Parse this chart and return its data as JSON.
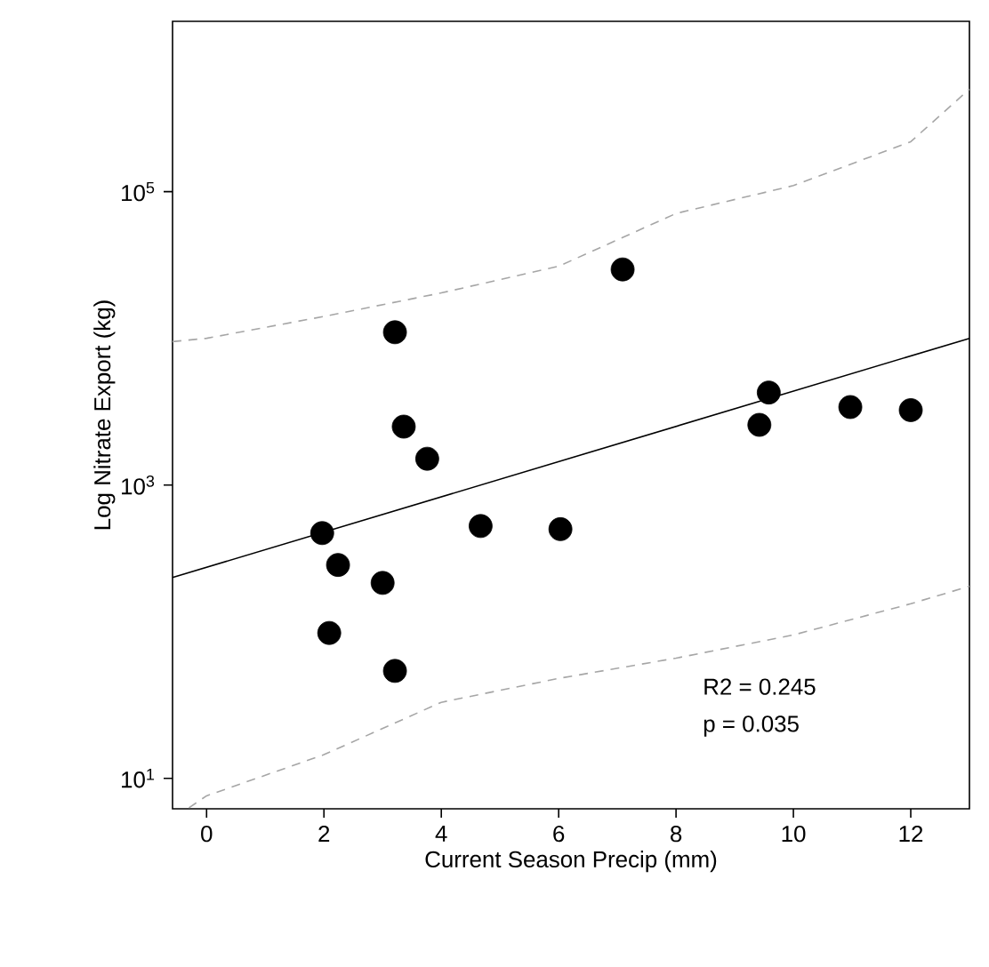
{
  "chart_data": {
    "type": "scatter",
    "xlabel": "Current Season Precip (mm)",
    "ylabel": "Log Nitrate Export (kg)",
    "log": "y",
    "xlim": [
      -0.58,
      13.0
    ],
    "ylim": [
      6.2,
      1450000
    ],
    "xticks": [
      0,
      2,
      4,
      6,
      8,
      10,
      12
    ],
    "yticks": [
      {
        "value": 10,
        "label": "10$^{1}$"
      },
      {
        "value": 1000,
        "label": "10$^{3}$"
      },
      {
        "value": 100000,
        "label": "10$^{5}$"
      }
    ],
    "series": [
      {
        "marker": "circle",
        "color": "#000000",
        "x": [
          1.97,
          2.24,
          2.09,
          3.0,
          3.21,
          3.21,
          3.36,
          3.76,
          4.67,
          6.03,
          7.09,
          9.42,
          9.58,
          10.97,
          12.0
        ],
        "values": [
          470,
          285,
          98,
          215,
          54,
          11000,
          2500,
          1510,
          525,
          500,
          29500,
          2570,
          4270,
          3400,
          3240
        ]
      },
      {
        "type": "line",
        "color": "#000000",
        "line_style": "solid",
        "marker": "none",
        "x": [
          -0.58,
          13.0
        ],
        "values": [
          234,
          10000
        ]
      },
      {
        "type": "line",
        "color": "#a6a6a6",
        "line_style": "dashed",
        "marker": "none",
        "x": [
          -0.3,
          0,
          2,
          4,
          6,
          8,
          10,
          12,
          13
        ],
        "values": [
          6.3,
          7.6,
          14.5,
          33,
          48,
          66,
          95,
          155,
          204
        ]
      },
      {
        "type": "line",
        "color": "#a6a6a6",
        "line_style": "dashed",
        "marker": "none",
        "x": [
          -0.58,
          0,
          2,
          4,
          6,
          8,
          10,
          12,
          13
        ],
        "values": [
          9500,
          10000,
          14100,
          20400,
          31000,
          71000,
          110000,
          219000,
          500000
        ]
      }
    ],
    "annotations": [
      "R2 = 0.245",
      "p = 0.035"
    ]
  }
}
